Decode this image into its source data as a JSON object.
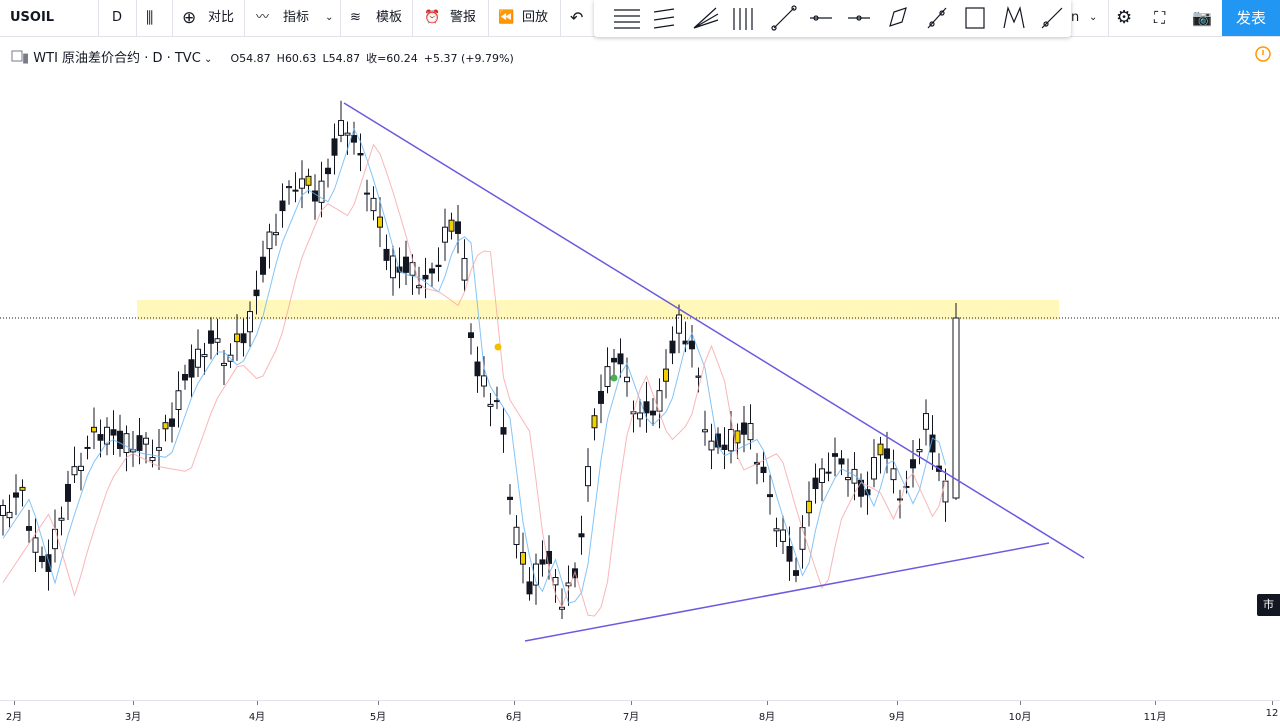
{
  "toolbar": {
    "symbol": "USOIL",
    "interval": "D",
    "items": [
      "对比",
      "指标",
      "模板",
      "警报",
      "回放"
    ],
    "publish": "发表",
    "partial": "n"
  },
  "legend": {
    "title": "WTI 原油差价合约 · D · TVC",
    "ohlc": [
      {
        "label": "O",
        "value": "54.87"
      },
      {
        "label": "H",
        "value": "60.63"
      },
      {
        "label": "L",
        "value": "54.87"
      },
      {
        "label": "收=",
        "value": "60.24"
      }
    ],
    "change": "+5.37 (+9.79%)"
  },
  "x_axis": [
    "2月",
    "3月",
    "4月",
    "5月",
    "6月",
    "7月",
    "8月",
    "9月",
    "10月",
    "11月",
    "12"
  ],
  "price_tag": "市"
}
